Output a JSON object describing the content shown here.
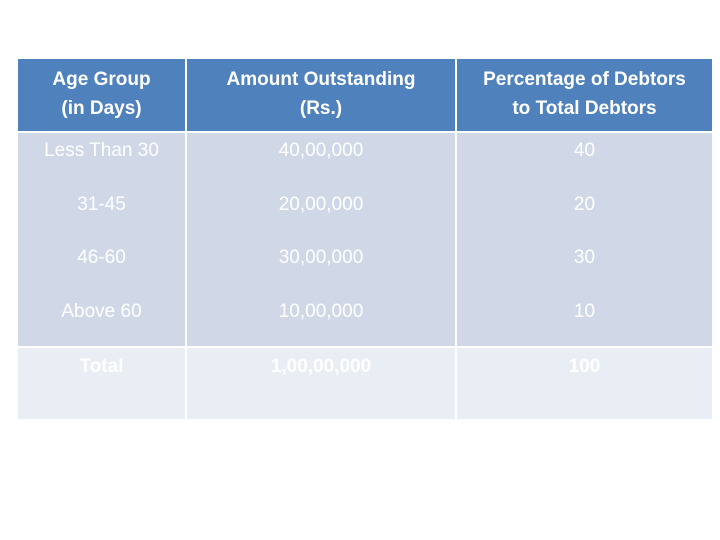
{
  "table": {
    "columns": [
      {
        "line1": "Age  Group",
        "line2": "(in Days)"
      },
      {
        "line1": "Amount Outstanding",
        "line2": "(Rs.)"
      },
      {
        "line1": "Percentage of Debtors",
        "line2": "to  Total Debtors"
      }
    ],
    "rows": [
      {
        "age_group": "Less Than 30",
        "amount": "40,00,000",
        "percentage": "40"
      },
      {
        "age_group": "31-45",
        "amount": "20,00,000",
        "percentage": "20"
      },
      {
        "age_group": "46-60",
        "amount": "30,00,000",
        "percentage": "30"
      },
      {
        "age_group": "Above 60",
        "amount": "10,00,000",
        "percentage": "10"
      }
    ],
    "total": {
      "label": "Total",
      "amount": "1,00,00,000",
      "percentage": "100"
    }
  },
  "colors": {
    "header_bg": "#4f81bd",
    "body_bg": "#d0d8e8",
    "total_bg": "#e9edf4",
    "text": "#ffffff"
  }
}
